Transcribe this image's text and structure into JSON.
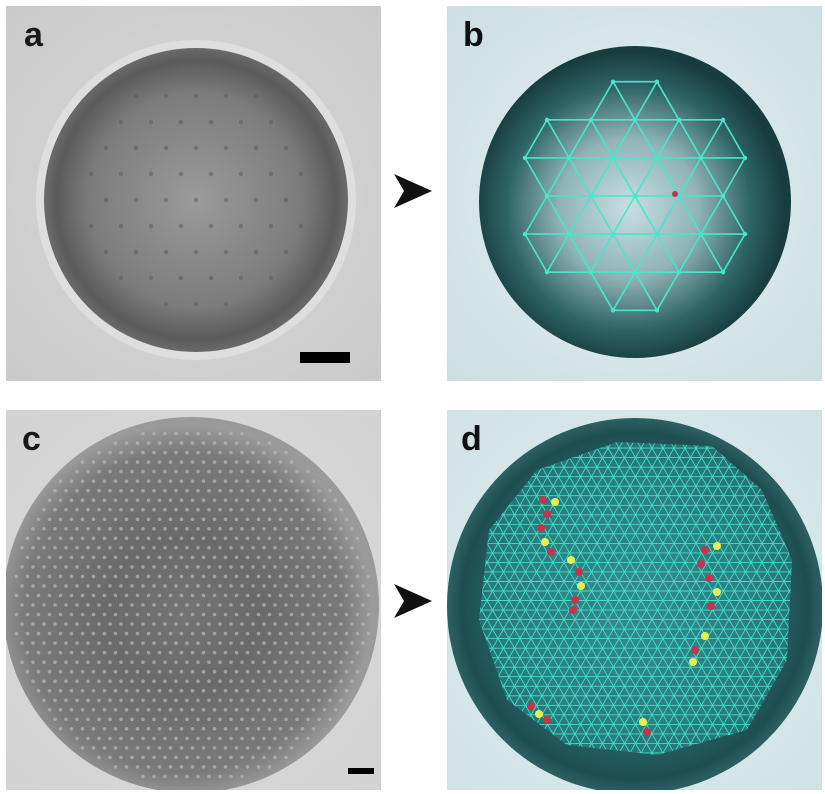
{
  "panels": [
    {
      "label": "a",
      "description_name": "brightfield-droplet-large-particles"
    },
    {
      "label": "b",
      "description_name": "triangulated-droplet-large-particles"
    },
    {
      "label": "c",
      "description_name": "brightfield-droplet-small-particles"
    },
    {
      "label": "d",
      "description_name": "triangulated-droplet-small-particles"
    }
  ],
  "colors": {
    "background": "#ffffff",
    "gray_droplet": "#6e6e6e",
    "teal_droplet": "#1f4f52",
    "mesh": "#46e6cf",
    "defect_red": "#c9324a",
    "defect_yellow": "#e7f052",
    "arrow": "#111111",
    "scalebar": "#000000"
  },
  "icons": {
    "arrow": "arrowhead-right-icon"
  }
}
